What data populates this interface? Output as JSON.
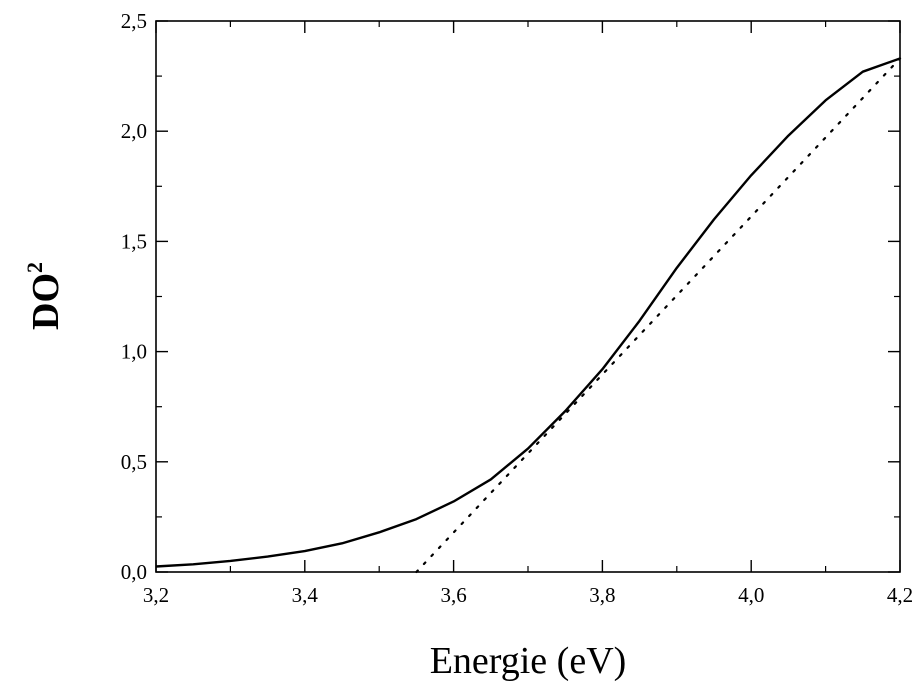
{
  "chart_data": {
    "type": "line",
    "xlabel": "Energie (eV)",
    "ylabel_base": "DO",
    "ylabel_superscript": "2",
    "xlim": [
      3.2,
      4.2
    ],
    "ylim": [
      0.0,
      2.5
    ],
    "x_ticks": [
      {
        "value": 3.2,
        "label": "3,2"
      },
      {
        "value": 3.4,
        "label": "3,4"
      },
      {
        "value": 3.6,
        "label": "3,6"
      },
      {
        "value": 3.8,
        "label": "3,8"
      },
      {
        "value": 4.0,
        "label": "4,0"
      },
      {
        "value": 4.2,
        "label": "4,2"
      }
    ],
    "y_ticks": [
      {
        "value": 0.0,
        "label": "0,0"
      },
      {
        "value": 0.5,
        "label": "0,5"
      },
      {
        "value": 1.0,
        "label": "1,0"
      },
      {
        "value": 1.5,
        "label": "1,5"
      },
      {
        "value": 2.0,
        "label": "2,0"
      },
      {
        "value": 2.5,
        "label": "2,5"
      }
    ],
    "grid": false,
    "series": [
      {
        "style": "solid",
        "color": "#000000",
        "x": [
          3.2,
          3.25,
          3.3,
          3.35,
          3.4,
          3.45,
          3.5,
          3.55,
          3.6,
          3.65,
          3.7,
          3.75,
          3.8,
          3.85,
          3.9,
          3.95,
          4.0,
          4.05,
          4.1,
          4.15,
          4.2
        ],
        "y": [
          0.025,
          0.035,
          0.05,
          0.07,
          0.095,
          0.13,
          0.18,
          0.24,
          0.32,
          0.42,
          0.56,
          0.73,
          0.92,
          1.14,
          1.38,
          1.6,
          1.8,
          1.98,
          2.14,
          2.27,
          2.33
        ]
      },
      {
        "style": "dotted",
        "color": "#000000",
        "x": [
          3.55,
          4.2
        ],
        "y": [
          0.0,
          2.33
        ]
      }
    ]
  }
}
